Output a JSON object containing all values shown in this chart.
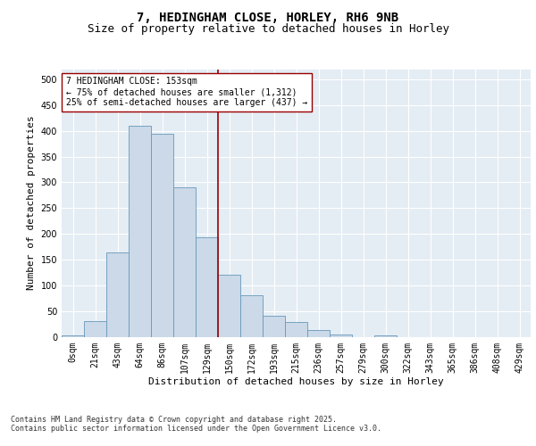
{
  "title": "7, HEDINGHAM CLOSE, HORLEY, RH6 9NB",
  "subtitle": "Size of property relative to detached houses in Horley",
  "xlabel": "Distribution of detached houses by size in Horley",
  "ylabel": "Number of detached properties",
  "categories": [
    "0sqm",
    "21sqm",
    "43sqm",
    "64sqm",
    "86sqm",
    "107sqm",
    "129sqm",
    "150sqm",
    "172sqm",
    "193sqm",
    "215sqm",
    "236sqm",
    "257sqm",
    "279sqm",
    "300sqm",
    "322sqm",
    "343sqm",
    "365sqm",
    "386sqm",
    "408sqm",
    "429sqm"
  ],
  "values": [
    3,
    30,
    163,
    410,
    395,
    290,
    193,
    120,
    80,
    40,
    28,
    13,
    5,
    0,
    3,
    0,
    0,
    0,
    0,
    0,
    0
  ],
  "bar_color": "#ccd9e8",
  "bar_edge_color": "#6699bb",
  "vline_color": "#990000",
  "annotation_text": "7 HEDINGHAM CLOSE: 153sqm\n← 75% of detached houses are smaller (1,312)\n25% of semi-detached houses are larger (437) →",
  "annotation_box_facecolor": "#ffffff",
  "annotation_box_edgecolor": "#990000",
  "ylim": [
    0,
    520
  ],
  "yticks": [
    0,
    50,
    100,
    150,
    200,
    250,
    300,
    350,
    400,
    450,
    500
  ],
  "bg_color": "#e4ecf4",
  "footer": "Contains HM Land Registry data © Crown copyright and database right 2025.\nContains public sector information licensed under the Open Government Licence v3.0.",
  "title_fontsize": 10,
  "subtitle_fontsize": 9,
  "xlabel_fontsize": 8,
  "ylabel_fontsize": 8,
  "tick_fontsize": 7,
  "annot_fontsize": 7,
  "footer_fontsize": 6
}
